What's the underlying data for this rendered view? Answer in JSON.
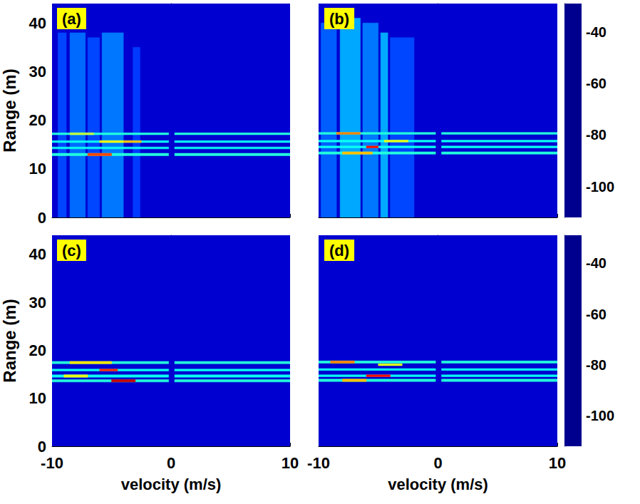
{
  "chart_data": [
    {
      "type": "heatmap",
      "title": "(a)",
      "ylabel": "Range (m)",
      "tick_labels": "y",
      "xlim": [
        -10,
        10
      ],
      "xticks": [
        -10,
        0,
        10
      ],
      "ylim": [
        0,
        44
      ],
      "yticks": [
        0,
        10,
        20,
        30,
        40
      ],
      "colorbar_lim": [
        -112,
        -29
      ],
      "colorbar_ticks": [
        -100,
        -80,
        -60,
        -40
      ],
      "cells": [
        [
          -10,
          10,
          0,
          44,
          -106
        ],
        [
          -9.5,
          -8.8,
          0,
          38,
          -96
        ],
        [
          -8.5,
          -7.2,
          0,
          38,
          -93
        ],
        [
          -7,
          -6,
          0,
          37,
          -96
        ],
        [
          -5.8,
          -4,
          0,
          38,
          -92
        ],
        [
          -3.2,
          -2.6,
          0,
          35,
          -97
        ],
        [
          -10,
          -0.2,
          12.7,
          13.2,
          -78
        ],
        [
          0.3,
          10,
          12.7,
          13.2,
          -78
        ],
        [
          -10,
          -0.2,
          14.1,
          14.5,
          -80
        ],
        [
          0.3,
          10,
          14.1,
          14.5,
          -80
        ],
        [
          -10,
          -0.2,
          15.4,
          15.8,
          -80
        ],
        [
          0.3,
          10,
          15.4,
          15.8,
          -80
        ],
        [
          -10,
          -0.2,
          17.0,
          17.4,
          -78
        ],
        [
          0.3,
          10,
          17.0,
          17.4,
          -78
        ],
        [
          -7,
          -5,
          12.7,
          13.2,
          -45
        ],
        [
          -6,
          -4,
          15.4,
          15.8,
          -60
        ],
        [
          -4,
          -2.5,
          15.4,
          15.8,
          -55
        ],
        [
          -8.5,
          -6.5,
          17.0,
          17.4,
          -65
        ]
      ]
    },
    {
      "type": "heatmap",
      "title": "(b)",
      "tick_labels": false,
      "xlim": [
        -10,
        10
      ],
      "xticks": [
        -10,
        0,
        10
      ],
      "ylim": [
        0,
        44
      ],
      "yticks": [
        0,
        10,
        20,
        30,
        40
      ],
      "colorbar_lim": [
        -112,
        -29
      ],
      "colorbar_ticks": [
        -100,
        -80,
        -60,
        -40
      ],
      "cells": [
        [
          -10,
          10,
          0,
          44,
          -106
        ],
        [
          -9.8,
          -8.5,
          0,
          40,
          -94
        ],
        [
          -8.2,
          -6.5,
          0,
          41,
          -88
        ],
        [
          -6.3,
          -5,
          0,
          40,
          -92
        ],
        [
          -4.8,
          -4.2,
          0,
          38,
          -88
        ],
        [
          -4,
          -2,
          0,
          37,
          -96
        ],
        [
          -10,
          -0.2,
          13.0,
          13.5,
          -78
        ],
        [
          0.3,
          10,
          13.0,
          13.5,
          -78
        ],
        [
          -10,
          -0.2,
          14.3,
          14.7,
          -80
        ],
        [
          0.3,
          10,
          14.3,
          14.7,
          -80
        ],
        [
          -10,
          -0.2,
          15.5,
          15.9,
          -80
        ],
        [
          0.3,
          10,
          15.5,
          15.9,
          -80
        ],
        [
          -10,
          -0.2,
          17.1,
          17.5,
          -78
        ],
        [
          0.3,
          10,
          17.1,
          17.5,
          -78
        ],
        [
          -8.5,
          -6.5,
          17.1,
          17.5,
          -50
        ],
        [
          -6,
          -5,
          14.3,
          14.7,
          -40
        ],
        [
          -4.5,
          -2.5,
          15.5,
          15.9,
          -62
        ],
        [
          -8,
          -5.5,
          13.0,
          13.5,
          -55
        ]
      ]
    },
    {
      "type": "heatmap",
      "title": "(c)",
      "xlabel": "velocity (m/s)",
      "ylabel": "Range (m)",
      "tick_labels": true,
      "xlim": [
        -10,
        10
      ],
      "xticks": [
        -10,
        0,
        10
      ],
      "ylim": [
        0,
        44
      ],
      "yticks": [
        0,
        10,
        20,
        30,
        40
      ],
      "colorbar_lim": [
        -112,
        -29
      ],
      "colorbar_ticks": [
        -100,
        -80,
        -60,
        -40
      ],
      "cells": [
        [
          -10,
          10,
          0,
          44,
          -106
        ],
        [
          -10,
          -0.2,
          13.4,
          13.9,
          -78
        ],
        [
          0.3,
          10,
          13.4,
          13.9,
          -78
        ],
        [
          -10,
          -0.2,
          14.4,
          14.9,
          -80
        ],
        [
          0.3,
          10,
          14.4,
          14.9,
          -80
        ],
        [
          -10,
          -0.2,
          15.7,
          16.1,
          -80
        ],
        [
          0.3,
          10,
          15.7,
          16.1,
          -80
        ],
        [
          -10,
          -0.2,
          17.2,
          17.7,
          -78
        ],
        [
          0.3,
          10,
          17.2,
          17.7,
          -78
        ],
        [
          -8.5,
          -5,
          17.2,
          17.7,
          -58
        ],
        [
          -5,
          -3,
          13.4,
          13.9,
          -35
        ],
        [
          -6,
          -4.5,
          15.7,
          16.1,
          -42
        ],
        [
          -9,
          -7,
          14.4,
          14.9,
          -62
        ]
      ]
    },
    {
      "type": "heatmap",
      "title": "(d)",
      "xlabel": "velocity (m/s)",
      "tick_labels": "x",
      "xlim": [
        -10,
        10
      ],
      "xticks": [
        -10,
        0,
        10
      ],
      "ylim": [
        0,
        44
      ],
      "yticks": [
        0,
        10,
        20,
        30,
        40
      ],
      "colorbar_lim": [
        -112,
        -29
      ],
      "colorbar_ticks": [
        -100,
        -80,
        -60,
        -40
      ],
      "cells": [
        [
          -10,
          10,
          0,
          44,
          -106
        ],
        [
          -10,
          -0.2,
          13.5,
          14.0,
          -78
        ],
        [
          0.3,
          10,
          13.5,
          14.0,
          -78
        ],
        [
          -10,
          -0.2,
          14.5,
          14.9,
          -80
        ],
        [
          0.3,
          10,
          14.5,
          14.9,
          -80
        ],
        [
          -10,
          -0.2,
          15.8,
          16.2,
          -80
        ],
        [
          0.3,
          10,
          15.8,
          16.2,
          -80
        ],
        [
          -10,
          -0.2,
          17.3,
          17.8,
          -78
        ],
        [
          0.3,
          10,
          17.3,
          17.8,
          -78
        ],
        [
          -9,
          -7,
          17.3,
          17.8,
          -50
        ],
        [
          -5,
          -3,
          16.8,
          17.2,
          -62
        ],
        [
          -6,
          -4,
          14.5,
          14.9,
          -40
        ],
        [
          -8,
          -6,
          13.5,
          14.0,
          -55
        ]
      ]
    }
  ]
}
